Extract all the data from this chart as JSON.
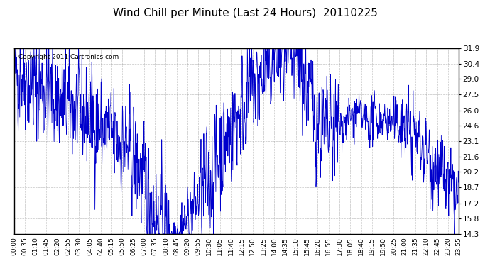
{
  "title": "Wind Chill per Minute (Last 24 Hours)  20110225",
  "copyright_text": "Copyright 2011 Cartronics.com",
  "line_color": "#0000CC",
  "background_color": "#ffffff",
  "plot_background": "#ffffff",
  "grid_color": "#aaaaaa",
  "yticks": [
    14.3,
    15.8,
    17.2,
    18.7,
    20.2,
    21.6,
    23.1,
    24.6,
    26.0,
    27.5,
    29.0,
    30.4,
    31.9
  ],
  "ymin": 14.3,
  "ymax": 31.9,
  "xtick_labels": [
    "00:00",
    "00:35",
    "01:10",
    "01:45",
    "02:20",
    "02:55",
    "03:30",
    "04:05",
    "04:40",
    "05:15",
    "05:50",
    "06:25",
    "07:00",
    "07:35",
    "08:10",
    "08:45",
    "09:20",
    "09:55",
    "10:30",
    "11:05",
    "11:40",
    "12:15",
    "12:50",
    "13:25",
    "14:00",
    "14:35",
    "15:10",
    "15:45",
    "16:20",
    "16:55",
    "17:30",
    "18:05",
    "18:40",
    "19:15",
    "19:50",
    "20:25",
    "21:00",
    "21:35",
    "22:10",
    "22:45",
    "23:20",
    "23:55"
  ],
  "total_minutes": 1440,
  "seed": 42
}
